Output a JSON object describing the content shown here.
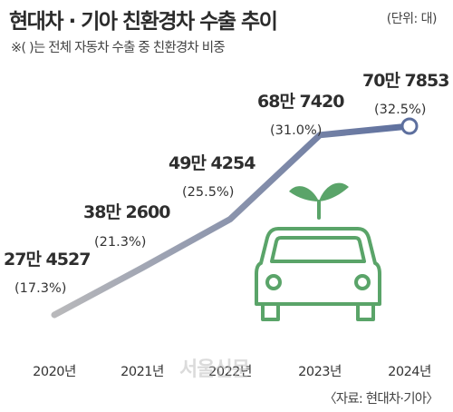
{
  "header": {
    "title": "현대차 · 기아 친환경차 수출 추이",
    "unit": "(단위: 대)",
    "note": "※(  )는 전체 자동차 수출 중 친환경차 비중"
  },
  "footer": {
    "source": "〈자료: 현대차·기아〉",
    "watermark": "서울신문"
  },
  "chart_data": {
    "type": "line",
    "title": "현대차 · 기아 친환경차 수출 추이",
    "xlabel": "",
    "ylabel": "",
    "categories": [
      "2020년",
      "2021년",
      "2022년",
      "2023년",
      "2024년"
    ],
    "series": [
      {
        "values": [
          274527,
          382600,
          494254,
          687420,
          707853
        ],
        "value_labels": [
          "27만 4527",
          "38만 2600",
          "49만 4254",
          "68만 7420",
          "70만 7853"
        ],
        "share_labels": [
          "(17.3%)",
          "(21.3%)",
          "(25.5%)",
          "(31.0%)",
          "(32.5%)"
        ],
        "share_percent": [
          17.3,
          21.3,
          25.5,
          31.0,
          32.5
        ]
      }
    ],
    "grid": false,
    "legend": "none",
    "colors": {
      "line_start": "#b9b9bb",
      "line_end": "#5d6f9e",
      "endpoint_fill": "#ffffff",
      "icon": "#5aa469"
    }
  }
}
